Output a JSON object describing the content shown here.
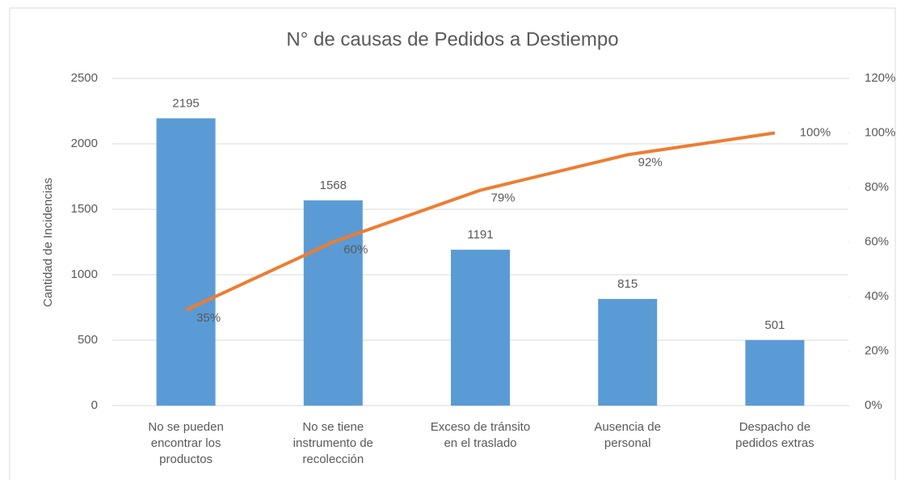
{
  "chart_data": {
    "type": "pareto",
    "title": "N° de causas de Pedidos a Destiempo",
    "ylabel": "Cantidad de Incidencias",
    "categories": [
      [
        "No se pueden",
        "encontrar los",
        "productos"
      ],
      [
        "No se tiene",
        "instrumento de",
        "recolección"
      ],
      [
        "Exceso de tránsito",
        "en el traslado"
      ],
      [
        "Ausencia de",
        "personal"
      ],
      [
        "Despacho de",
        "pedidos extras"
      ]
    ],
    "series": [
      {
        "type": "bar",
        "color": "#5b9bd5",
        "values": [
          2195,
          1568,
          1191,
          815,
          501
        ]
      },
      {
        "type": "line",
        "axis": "y2",
        "color": "#ed7d31",
        "values": [
          35,
          60,
          79,
          92,
          100
        ],
        "value_labels": [
          "35%",
          "60%",
          "79%",
          "92%",
          "100%"
        ]
      }
    ],
    "ylim": [
      0,
      2500
    ],
    "yticks": [
      0,
      500,
      1000,
      1500,
      2000,
      2500
    ],
    "y2lim": [
      0,
      120
    ],
    "y2ticks": [
      {
        "value": 0,
        "label": "0%"
      },
      {
        "value": 20,
        "label": "20%"
      },
      {
        "value": 40,
        "label": "40%"
      },
      {
        "value": 60,
        "label": "60%"
      },
      {
        "value": 80,
        "label": "80%"
      },
      {
        "value": 100,
        "label": "100%"
      },
      {
        "value": 120,
        "label": "120%"
      }
    ],
    "grid": true
  }
}
